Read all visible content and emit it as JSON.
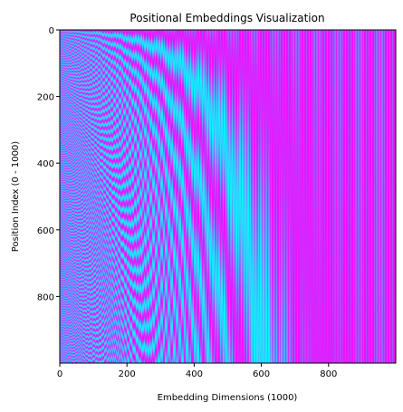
{
  "chart_data": {
    "type": "heatmap",
    "title": "Positional Embeddings Visualization",
    "xlabel": "Embedding Dimensions (1000)",
    "ylabel": "Position Index (0 - 1000)",
    "xlim": [
      0,
      1000
    ],
    "ylim": [
      1000,
      0
    ],
    "x_ticks": [
      "0",
      "200",
      "400",
      "600",
      "800"
    ],
    "y_ticks": [
      "0",
      "200",
      "400",
      "600",
      "800"
    ],
    "x_tick_values": [
      0,
      200,
      400,
      600,
      800
    ],
    "y_tick_values": [
      0,
      200,
      400,
      600,
      800
    ],
    "positions": 1000,
    "dimensions": 1000,
    "colormap": "cool",
    "colormap_low": "#00ffff",
    "colormap_high": "#ff00ff",
    "value_range": [
      -1,
      1
    ],
    "grid": false
  }
}
